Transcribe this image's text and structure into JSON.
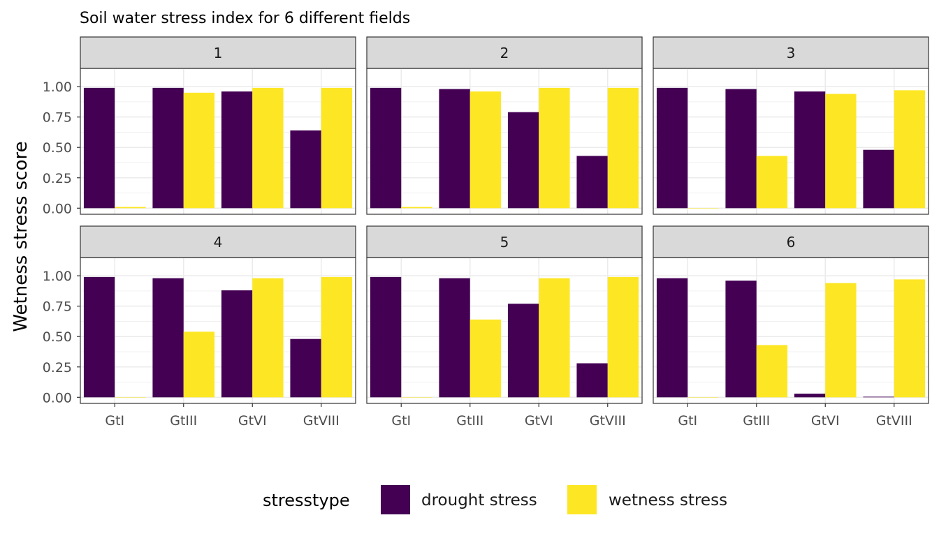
{
  "chart_data": {
    "type": "bar",
    "title": "Soil water stress index for 6 different fields",
    "ylabel": "Wetness stress score",
    "xlabel": "",
    "ylim": [
      -0.05,
      1.15
    ],
    "yticks": [
      0,
      0.25,
      0.5,
      0.75,
      1
    ],
    "ytick_labels": [
      "0.00",
      "0.25",
      "0.50",
      "0.75",
      "1.00"
    ],
    "categories": [
      "GtI",
      "GtIII",
      "GtVI",
      "GtVIII"
    ],
    "grid": true,
    "facets_per_row": 3,
    "legend": {
      "title": "stresstype",
      "position": "bottom",
      "entries": [
        "drought stress",
        "wetness stress"
      ]
    },
    "series_colors": [
      "#440154",
      "#FDE725"
    ],
    "panels": [
      {
        "label": "1",
        "series": [
          {
            "name": "drought stress",
            "values": [
              0.99,
              0.99,
              0.96,
              0.64
            ]
          },
          {
            "name": "wetness stress",
            "values": [
              0.01,
              0.95,
              0.99,
              0.99
            ]
          }
        ]
      },
      {
        "label": "2",
        "series": [
          {
            "name": "drought stress",
            "values": [
              0.99,
              0.98,
              0.79,
              0.43
            ]
          },
          {
            "name": "wetness stress",
            "values": [
              0.01,
              0.96,
              0.99,
              0.99
            ]
          }
        ]
      },
      {
        "label": "3",
        "series": [
          {
            "name": "drought stress",
            "values": [
              0.99,
              0.98,
              0.96,
              0.48
            ]
          },
          {
            "name": "wetness stress",
            "values": [
              0,
              0.43,
              0.94,
              0.97
            ]
          }
        ]
      },
      {
        "label": "4",
        "series": [
          {
            "name": "drought stress",
            "values": [
              0.99,
              0.98,
              0.88,
              0.48
            ]
          },
          {
            "name": "wetness stress",
            "values": [
              0,
              0.54,
              0.98,
              0.99
            ]
          }
        ]
      },
      {
        "label": "5",
        "series": [
          {
            "name": "drought stress",
            "values": [
              0.99,
              0.98,
              0.77,
              0.28
            ]
          },
          {
            "name": "wetness stress",
            "values": [
              0,
              0.64,
              0.98,
              0.99
            ]
          }
        ]
      },
      {
        "label": "6",
        "series": [
          {
            "name": "drought stress",
            "values": [
              0.98,
              0.96,
              0.03,
              0.005
            ]
          },
          {
            "name": "wetness stress",
            "values": [
              0,
              0.43,
              0.94,
              0.97
            ]
          }
        ]
      }
    ]
  }
}
